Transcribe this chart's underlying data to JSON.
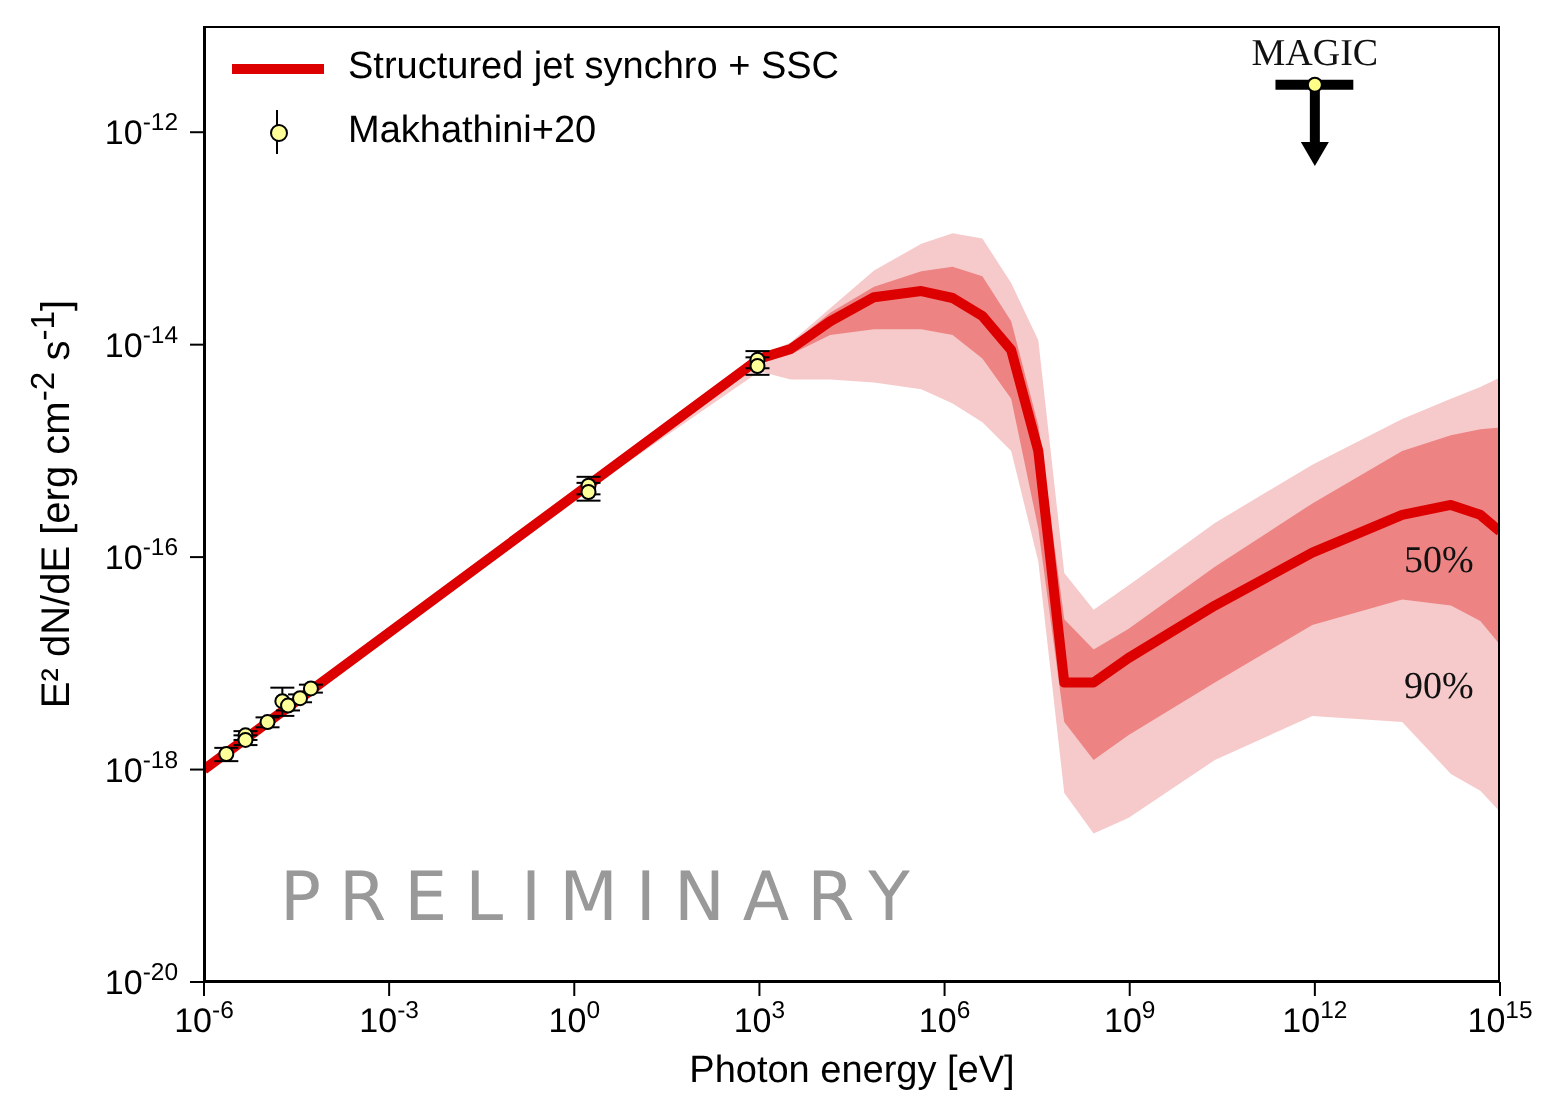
{
  "chart_data": {
    "type": "line",
    "xlabel": "Photon energy [eV]",
    "ylabel": "E² dN/dE [erg cm$^{-2}$ s$^{-1}$]",
    "log": "xy",
    "xlim": [
      1e-06,
      1000000000000000.0
    ],
    "ylim": [
      1e-20,
      1e-11
    ],
    "xticks": [
      {
        "value": 1e-06,
        "label": "10$^{-6}$"
      },
      {
        "value": 0.001,
        "label": "10$^{-3}$"
      },
      {
        "value": 1,
        "label": "10$^{0}$"
      },
      {
        "value": 1000.0,
        "label": "10$^{3}$"
      },
      {
        "value": 1000000.0,
        "label": "10$^{6}$"
      },
      {
        "value": 1000000000.0,
        "label": "10$^{9}$"
      },
      {
        "value": 1000000000000.0,
        "label": "10$^{12}$"
      },
      {
        "value": 1000000000000000.0,
        "label": "10$^{15}$"
      }
    ],
    "yticks": [
      {
        "value": 1e-20,
        "label": "10$^{-20}$"
      },
      {
        "value": 1e-18,
        "label": "10$^{-18}$"
      },
      {
        "value": 1e-16,
        "label": "10$^{-16}$"
      },
      {
        "value": 1e-14,
        "label": "10$^{-14}$"
      },
      {
        "value": 1e-12,
        "label": "10$^{-12}$"
      }
    ],
    "grid": false,
    "legend": "top left",
    "series": [
      {
        "color": "#f6caca",
        "x": [
          1e-06,
          1,
          1000.0,
          3200.0,
          14000.0,
          72000.0,
          420000.0,
          1350000.0,
          4100000.0,
          12000000.0,
          33000000.0,
          87000000.0,
          260000000.0,
          950000000.0,
          24000000000.0,
          910000000000.0,
          26000000000000.0,
          160000000000000.0,
          480000000000000.0,
          1000000000000000.0
        ],
        "values": [
          null,
          null,
          null,
          null,
          null,
          null,
          null,
          null,
          null,
          null,
          null,
          null,
          null,
          null,
          null,
          null,
          null,
          null,
          null,
          null
        ],
        "lower": [
          1e-18,
          3.5e-16,
          5.6e-15,
          4.7e-15,
          4.7e-15,
          4.4e-15,
          3.8e-15,
          2.8e-15,
          1.86e-15,
          1e-15,
          9.1e-17,
          6e-19,
          2.5e-19,
          3.5e-19,
          1.23e-18,
          3.2e-18,
          2.8e-18,
          9.1e-19,
          6.3e-19,
          4e-19
        ],
        "upper": [
          1e-18,
          3.8e-16,
          7.9e-15,
          1.05e-14,
          2.2e-14,
          5e-14,
          8.9e-14,
          1.12e-13,
          1e-13,
          3.8e-14,
          1.1e-14,
          7.1e-17,
          3.2e-17,
          5.4e-17,
          2.1e-16,
          7.4e-16,
          2e-15,
          3.1e-15,
          4e-15,
          4.9e-15
        ]
      },
      {
        "name": "Structured jet synchro + SSC",
        "marker": "none",
        "color": "#dd0000",
        "x": [
          1e-06,
          1,
          1000.0,
          3200.0,
          14000.0,
          72000.0,
          420000.0,
          1350000.0,
          4100000.0,
          12000000.0,
          33000000.0,
          87000000.0,
          260000000.0,
          950000000.0,
          24000000000.0,
          910000000000.0,
          26000000000000.0,
          160000000000000.0,
          480000000000000.0,
          1000000000000000.0
        ],
        "values": [
          1e-18,
          3.8e-16,
          7.4e-15,
          9.1e-15,
          1.66e-14,
          2.8e-14,
          3.2e-14,
          2.75e-14,
          1.86e-14,
          8.9e-15,
          1e-15,
          6.6e-18,
          6.6e-18,
          1.12e-17,
          3.5e-17,
          1.1e-16,
          2.5e-16,
          3.1e-16,
          2.5e-16,
          1.74e-16
        ],
        "lower": [
          1e-18,
          3.7e-16,
          6.6e-15,
          8.1e-15,
          1.23e-14,
          1.4e-14,
          1.4e-14,
          1.23e-14,
          7.4e-15,
          3.1e-15,
          1.86e-16,
          2.8e-18,
          1.23e-18,
          2.1e-18,
          6.6e-18,
          2.3e-17,
          4e-17,
          3.5e-17,
          2.5e-17,
          1.5e-17
        ],
        "upper": [
          1e-18,
          3.8e-16,
          7.6e-15,
          1e-14,
          2e-14,
          3.5e-14,
          4.9e-14,
          5.4e-14,
          4.4e-14,
          1.66e-14,
          1.74e-15,
          2.6e-17,
          1.35e-17,
          2.1e-17,
          8.1e-17,
          3.2e-16,
          1e-15,
          1.4e-15,
          1.6e-15,
          1.66e-15
        ]
      },
      {
        "name": "Makhathini+20",
        "type": "scatter",
        "marker": "circle",
        "color": "#ffff99",
        "x": [
          2.3e-06,
          4.7e-06,
          4.7e-06,
          1.07e-05,
          1.86e-05,
          2.3e-05,
          3.6e-05,
          5.4e-05,
          1.7,
          1.7,
          930,
          930
        ],
        "values": [
          1.4e-18,
          2.1e-18,
          1.9e-18,
          2.8e-18,
          4.4e-18,
          4e-18,
          4.7e-18,
          5.8e-18,
          4.7e-16,
          4.1e-16,
          7.2e-15,
          6.3e-15
        ],
        "errors": [
          [
            1.2e-18,
            1.6e-18
          ],
          [
            1.9e-18,
            2.3e-18
          ],
          [
            1.7e-18,
            2.1e-18
          ],
          [
            2.5e-18,
            3.1e-18
          ],
          [
            3.2e-18,
            5.9e-18
          ],
          [
            3.6e-18,
            4.4e-18
          ],
          [
            4.3e-18,
            5.1e-18
          ],
          [
            5.3e-18,
            6.3e-18
          ],
          [
            3.9e-16,
            5.7e-16
          ],
          [
            3.4e-16,
            5e-16
          ],
          [
            6e-15,
            8.7e-15
          ],
          [
            5.2e-15,
            7.6e-15
          ]
        ]
      },
      {
        "name": "MAGIC",
        "type": "scatter",
        "marker": "circle",
        "color": "#ffff88",
        "x": [
          1000000000000.0
        ],
        "values": [
          2.8e-12
        ],
        "errors": [
          [
            7.4e-13,
            2.8e-12
          ]
        ],
        "xerrors": [
          [
            230000000000.0,
            4200000000000.0
          ]
        ]
      }
    ],
    "annotations": [
      "PRELIMINARY",
      "50%",
      "90%"
    ]
  }
}
